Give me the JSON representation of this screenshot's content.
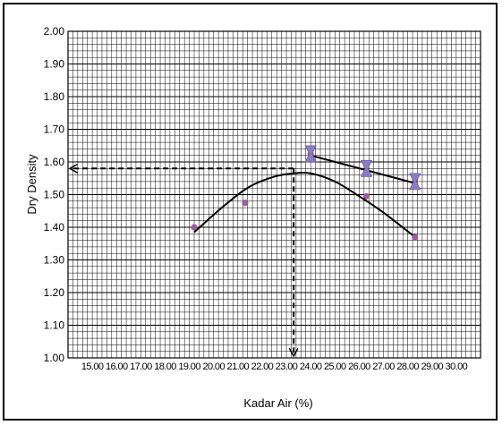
{
  "chart_data": {
    "type": "scatter",
    "title": "",
    "xlabel": "Kadar Air (%)",
    "ylabel": "Dry Density",
    "xlim": [
      14.0,
      31.0
    ],
    "ylim": [
      1.0,
      2.0
    ],
    "grid": true,
    "x_tick_labels": [
      "15.00",
      "16.00",
      "17.00",
      "18.00",
      "19.00",
      "20.00",
      "21.00",
      "22.00",
      "23.00",
      "24.00",
      "25.00",
      "26.00",
      "27.00",
      "28.00",
      "29.00",
      "30.00"
    ],
    "y_tick_labels": [
      "1.00",
      "1.10",
      "1.20",
      "1.30",
      "1.40",
      "1.50",
      "1.60",
      "1.70",
      "1.80",
      "1.90",
      "2.00"
    ],
    "series": [
      {
        "marker": "circle",
        "color": "#7b68c8",
        "x": [
          19.2,
          21.3,
          24.0,
          26.3,
          28.3
        ],
        "y": [
          1.4,
          1.475,
          1.625,
          1.495,
          1.37
        ]
      },
      {
        "marker": "hourglass",
        "color": "#8e7cc3",
        "x": [
          24.0,
          26.3,
          28.3
        ],
        "y": [
          1.625,
          1.58,
          1.54
        ]
      }
    ],
    "compaction_curve": {
      "x": [
        19.2,
        20.5,
        21.5,
        22.5,
        23.3,
        24.0,
        25.0,
        26.0,
        27.0,
        28.3
      ],
      "y": [
        1.385,
        1.47,
        1.525,
        1.555,
        1.565,
        1.565,
        1.54,
        1.495,
        1.445,
        1.37
      ]
    },
    "zero_air_voids_line": {
      "x": [
        24.0,
        28.3
      ],
      "y": [
        1.62,
        1.535
      ]
    },
    "optimum": {
      "x": 23.3,
      "y": 1.58
    }
  }
}
